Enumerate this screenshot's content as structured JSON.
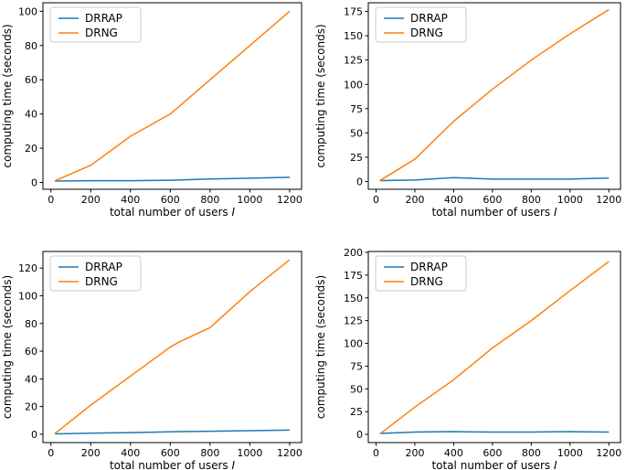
{
  "figure": {
    "title": "",
    "ylabel": "computing time (seconds)",
    "xlabel_prefix": "total number of users ",
    "xlabel_var": "I",
    "legend_labels": [
      "DRRAP",
      "DRNG"
    ],
    "colors": {
      "drrap_line": "#1f77b4",
      "drng_line": "#ff7f0e",
      "spine": "#000000",
      "legend_border": "#cccccc",
      "background": "#ffffff"
    }
  },
  "chart_data": [
    {
      "type": "line",
      "position": "top-left",
      "title": "",
      "xlabel": "total number of users I",
      "ylabel": "computing time (seconds)",
      "x": [
        20,
        200,
        400,
        600,
        800,
        1000,
        1200
      ],
      "series": [
        {
          "name": "DRRAP",
          "color": "#1f77b4",
          "values": [
            0.8,
            1.0,
            1.0,
            1.3,
            2.0,
            2.5,
            3.0
          ]
        },
        {
          "name": "DRNG",
          "color": "#ff7f0e",
          "values": [
            1,
            10,
            27,
            40,
            60,
            80,
            100
          ]
        }
      ],
      "xticks": [
        0,
        200,
        400,
        600,
        800,
        1000,
        1200
      ],
      "yticks": [
        0,
        20,
        40,
        60,
        80,
        100
      ],
      "xlim": [
        -40,
        1260
      ],
      "ylim": [
        -4,
        105
      ],
      "legend_position": "upper left",
      "grid": false
    },
    {
      "type": "line",
      "position": "top-right",
      "title": "",
      "xlabel": "total number of users I",
      "ylabel": "computing time (seconds)",
      "x": [
        20,
        200,
        400,
        600,
        800,
        1000,
        1200
      ],
      "series": [
        {
          "name": "DRRAP",
          "color": "#1f77b4",
          "values": [
            1.0,
            1.5,
            4.0,
            2.5,
            2.5,
            2.5,
            3.5
          ]
        },
        {
          "name": "DRNG",
          "color": "#ff7f0e",
          "values": [
            1,
            23,
            62,
            95,
            125,
            152,
            177
          ]
        }
      ],
      "xticks": [
        0,
        200,
        400,
        600,
        800,
        1000,
        1200
      ],
      "yticks": [
        0,
        25,
        50,
        75,
        100,
        125,
        150,
        175
      ],
      "xlim": [
        -40,
        1260
      ],
      "ylim": [
        -8,
        184
      ],
      "legend_position": "upper left",
      "grid": false
    },
    {
      "type": "line",
      "position": "bottom-left",
      "title": "",
      "xlabel": "total number of users I",
      "ylabel": "computing time (seconds)",
      "x": [
        20,
        200,
        400,
        600,
        650,
        800,
        1000,
        1200
      ],
      "series": [
        {
          "name": "DRRAP",
          "color": "#1f77b4",
          "values": [
            0.3,
            0.8,
            1.2,
            1.8,
            1.9,
            2.2,
            2.6,
            3.0
          ]
        },
        {
          "name": "DRNG",
          "color": "#ff7f0e",
          "values": [
            0.5,
            21,
            42,
            63,
            67,
            77,
            103,
            126
          ]
        }
      ],
      "xticks": [
        0,
        200,
        400,
        600,
        800,
        1000,
        1200
      ],
      "yticks": [
        0,
        20,
        40,
        60,
        80,
        100,
        120
      ],
      "xlim": [
        -40,
        1260
      ],
      "ylim": [
        -6,
        132
      ],
      "legend_position": "upper left",
      "grid": false
    },
    {
      "type": "line",
      "position": "bottom-right",
      "title": "",
      "xlabel": "total number of users I",
      "ylabel": "computing time (seconds)",
      "x": [
        20,
        200,
        400,
        600,
        800,
        1000,
        1200
      ],
      "series": [
        {
          "name": "DRRAP",
          "color": "#1f77b4",
          "values": [
            1.0,
            2.5,
            3.0,
            2.5,
            2.5,
            3.0,
            2.5
          ]
        },
        {
          "name": "DRNG",
          "color": "#ff7f0e",
          "values": [
            0.5,
            30,
            60,
            95,
            125,
            158,
            190
          ]
        }
      ],
      "xticks": [
        0,
        200,
        400,
        600,
        800,
        1000,
        1200
      ],
      "yticks": [
        0,
        25,
        50,
        75,
        100,
        125,
        150,
        175,
        200
      ],
      "xlim": [
        -40,
        1260
      ],
      "ylim": [
        -9,
        201
      ],
      "legend_position": "upper left",
      "grid": false
    }
  ]
}
